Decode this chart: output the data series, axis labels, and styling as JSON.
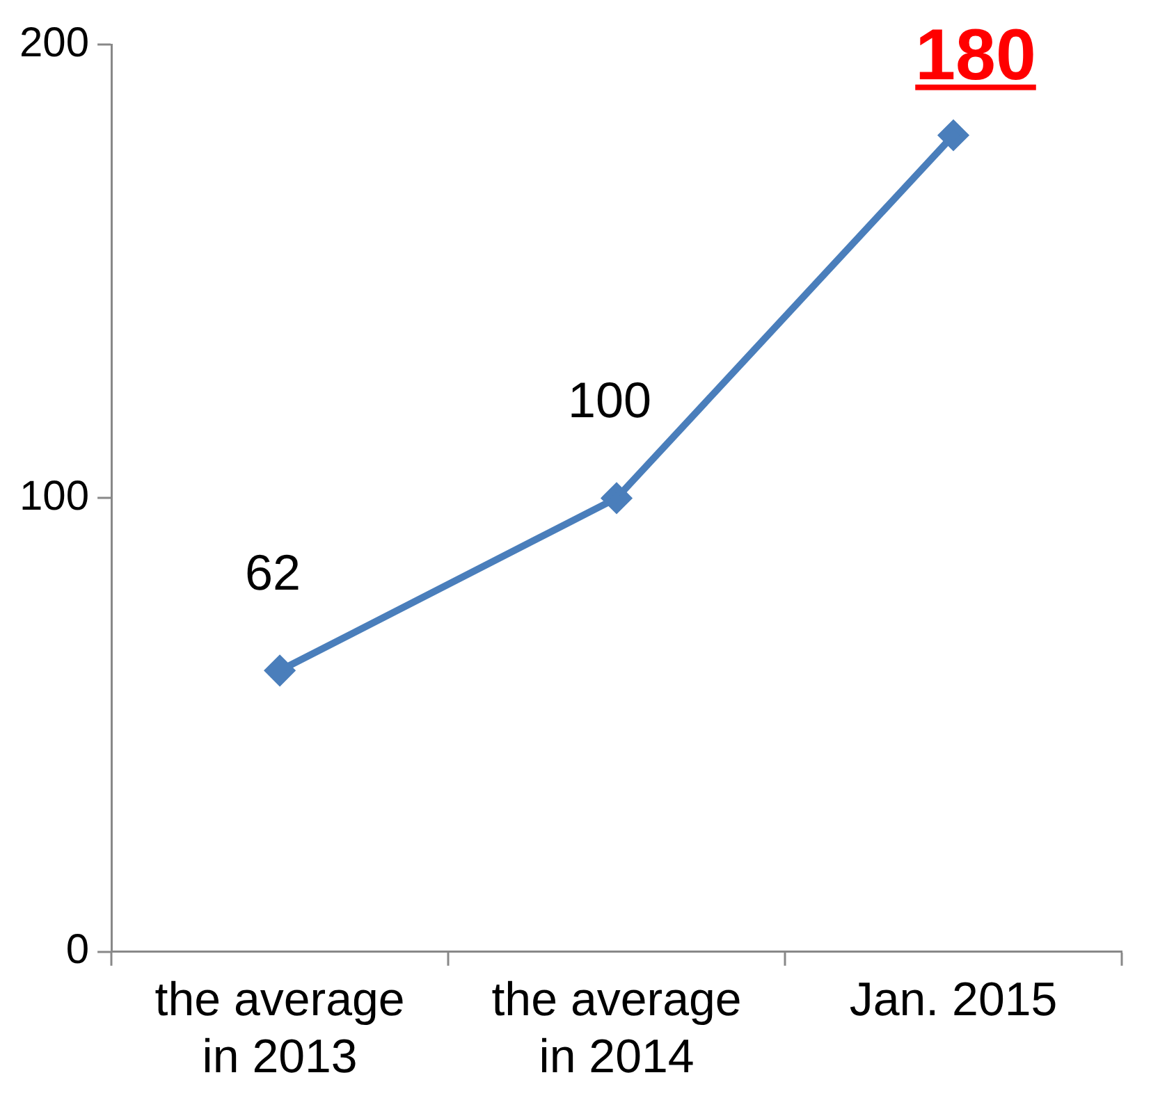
{
  "chart_data": {
    "type": "line",
    "categories": [
      "the average\nin 2013",
      "the average\nin 2014",
      "Jan. 2015"
    ],
    "series": [
      {
        "color": "#4a7ebb",
        "values": [
          62,
          100,
          180
        ]
      }
    ],
    "value_labels": [
      [
        "62",
        "100",
        null
      ]
    ],
    "annotations": [
      {
        "text": "180",
        "x": "Jan. 2015",
        "y": 180
      }
    ],
    "ylim": [
      0,
      200
    ],
    "yticks": [
      0,
      100,
      200
    ],
    "grid": false,
    "legend": false,
    "marker": "diamond",
    "line_style": "solid"
  }
}
